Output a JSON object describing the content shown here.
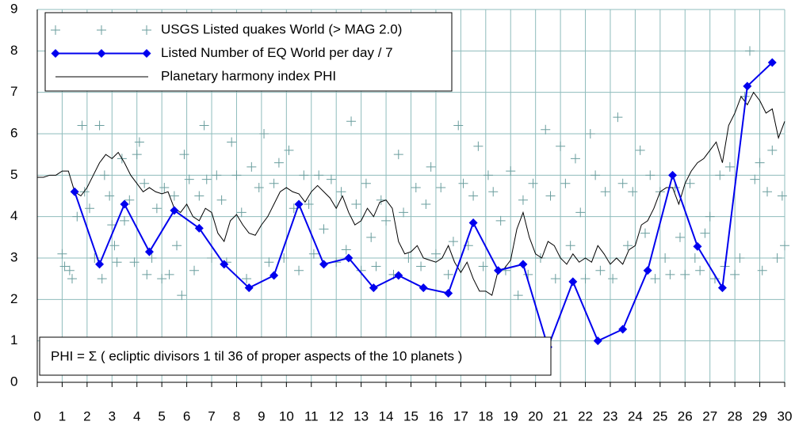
{
  "chart_data": {
    "type": "scatter-line",
    "annotation": "PHI = Σ ( ecliptic divisors 1 til 36 of proper aspects of the 10 planets )",
    "xlim": [
      0,
      30
    ],
    "ylim": [
      0,
      9
    ],
    "xticks": [
      0,
      1,
      2,
      3,
      4,
      5,
      6,
      7,
      8,
      9,
      10,
      11,
      12,
      13,
      14,
      15,
      16,
      17,
      18,
      19,
      20,
      21,
      22,
      23,
      24,
      25,
      26,
      27,
      28,
      29,
      30
    ],
    "yticks": [
      0,
      1,
      2,
      3,
      4,
      5,
      6,
      7,
      8,
      9
    ],
    "grid": true,
    "legend": "upper left",
    "series": [
      {
        "name": "USGS Listed quakes World (> MAG 2.0)",
        "kind": "scatter",
        "color": "#6a9e9e",
        "x": [
          1.0,
          1.1,
          1.3,
          1.4,
          1.6,
          1.8,
          1.9,
          2.1,
          2.3,
          2.5,
          2.6,
          2.7,
          2.9,
          3.0,
          3.1,
          3.2,
          3.4,
          3.5,
          3.7,
          3.9,
          4.0,
          4.1,
          4.3,
          4.4,
          4.6,
          4.8,
          5.0,
          5.1,
          5.3,
          5.5,
          5.6,
          5.8,
          5.9,
          6.1,
          6.3,
          6.5,
          6.7,
          6.8,
          7.0,
          7.2,
          7.4,
          7.6,
          7.8,
          8.0,
          8.2,
          8.4,
          8.6,
          8.9,
          9.1,
          9.3,
          9.5,
          9.7,
          9.9,
          10.1,
          10.3,
          10.5,
          10.7,
          10.9,
          11.1,
          11.3,
          11.5,
          11.8,
          12.0,
          12.2,
          12.4,
          12.6,
          12.8,
          13.0,
          13.2,
          13.4,
          13.6,
          13.8,
          14.0,
          14.3,
          14.5,
          14.7,
          14.9,
          15.2,
          15.4,
          15.6,
          15.8,
          16.0,
          16.2,
          16.5,
          16.7,
          16.9,
          17.1,
          17.3,
          17.5,
          17.7,
          17.9,
          18.1,
          18.3,
          18.6,
          18.8,
          19.0,
          19.3,
          19.5,
          19.7,
          19.9,
          20.2,
          20.4,
          20.6,
          20.8,
          21.0,
          21.2,
          21.4,
          21.6,
          21.8,
          22.0,
          22.2,
          22.4,
          22.6,
          22.8,
          23.1,
          23.3,
          23.5,
          23.7,
          23.9,
          24.2,
          24.4,
          24.6,
          24.8,
          25.0,
          25.2,
          25.4,
          25.6,
          25.8,
          26.0,
          26.2,
          26.4,
          26.6,
          26.8,
          27.0,
          27.2,
          27.4,
          27.6,
          27.8,
          28.0,
          28.2,
          28.4,
          28.6,
          28.8,
          29.0,
          29.1,
          29.3,
          29.5,
          29.7,
          29.9,
          30.0
        ],
        "values": [
          3.1,
          2.8,
          2.7,
          2.5,
          4.0,
          6.2,
          4.6,
          4.2,
          3.0,
          6.2,
          2.5,
          5.0,
          4.5,
          3.8,
          3.3,
          2.9,
          5.4,
          3.9,
          4.4,
          2.9,
          5.5,
          5.8,
          4.8,
          2.6,
          3.0,
          4.2,
          2.5,
          4.7,
          2.6,
          4.5,
          3.3,
          2.1,
          5.5,
          4.9,
          2.7,
          4.5,
          6.2,
          4.9,
          3.0,
          5.0,
          4.4,
          2.9,
          5.8,
          5.0,
          4.1,
          2.5,
          5.2,
          4.7,
          6.0,
          2.9,
          4.8,
          5.3,
          3.0,
          5.6,
          4.2,
          2.7,
          5.0,
          4.3,
          3.1,
          5.0,
          3.7,
          4.9,
          2.9,
          4.6,
          3.2,
          6.3,
          4.3,
          2.7,
          4.8,
          3.5,
          2.8,
          4.4,
          3.9,
          2.6,
          5.5,
          4.1,
          3.0,
          4.7,
          2.8,
          4.3,
          5.2,
          3.1,
          4.7,
          2.6,
          3.4,
          6.2,
          4.8,
          3.3,
          4.5,
          5.7,
          2.8,
          5.0,
          4.6,
          3.9,
          2.7,
          5.1,
          2.1,
          4.4,
          2.6,
          4.8,
          3.0,
          6.1,
          4.5,
          2.5,
          5.7,
          4.8,
          3.3,
          5.4,
          4.1,
          2.5,
          6.0,
          5.0,
          2.7,
          4.6,
          2.5,
          6.4,
          4.8,
          3.3,
          4.6,
          5.6,
          3.6,
          5.0,
          2.5,
          4.6,
          3.0,
          2.6,
          4.7,
          3.5,
          2.6,
          4.8,
          3.0,
          2.7,
          3.6,
          4.0,
          2.5,
          5.0,
          2.8,
          5.2,
          2.6,
          3.0,
          6.9,
          8.0,
          4.9,
          5.3,
          2.7,
          4.6,
          5.6,
          3.0,
          4.5,
          3.3
        ]
      },
      {
        "name": "Listed Number of EQ World per day / 7",
        "kind": "line-marker",
        "color": "#0000ee",
        "x": [
          1.5,
          2.5,
          3.5,
          4.5,
          5.5,
          6.5,
          7.5,
          8.5,
          9.5,
          10.5,
          11.5,
          12.5,
          13.5,
          14.5,
          15.5,
          16.5,
          17.5,
          18.5,
          19.5,
          20.5,
          21.5,
          22.5,
          23.5,
          24.5,
          25.5,
          26.5,
          27.5,
          28.5,
          29.5
        ],
        "values": [
          4.6,
          2.85,
          4.3,
          3.15,
          4.15,
          3.72,
          2.85,
          2.28,
          2.58,
          4.3,
          2.85,
          3.0,
          2.28,
          2.58,
          2.28,
          2.15,
          3.85,
          2.7,
          2.85,
          0.85,
          2.43,
          1.0,
          1.28,
          2.7,
          5.0,
          3.28,
          2.28,
          7.15,
          7.72
        ]
      },
      {
        "name": "Planetary harmony index PHI",
        "kind": "line",
        "color": "#000000",
        "x": [
          0,
          0.25,
          0.5,
          0.75,
          1,
          1.25,
          1.5,
          1.75,
          2,
          2.25,
          2.5,
          2.75,
          3,
          3.25,
          3.5,
          3.75,
          4,
          4.25,
          4.5,
          4.75,
          5,
          5.25,
          5.5,
          5.75,
          6,
          6.25,
          6.5,
          6.75,
          7,
          7.25,
          7.5,
          7.75,
          8,
          8.25,
          8.5,
          8.75,
          9,
          9.25,
          9.5,
          9.75,
          10,
          10.25,
          10.5,
          10.75,
          11,
          11.25,
          11.5,
          11.75,
          12,
          12.25,
          12.5,
          12.75,
          13,
          13.25,
          13.5,
          13.75,
          14,
          14.25,
          14.5,
          14.75,
          15,
          15.25,
          15.5,
          15.75,
          16,
          16.25,
          16.5,
          16.75,
          17,
          17.25,
          17.5,
          17.75,
          18,
          18.25,
          18.5,
          18.75,
          19,
          19.25,
          19.5,
          19.75,
          20,
          20.25,
          20.5,
          20.75,
          21,
          21.25,
          21.5,
          21.75,
          22,
          22.25,
          22.5,
          22.75,
          23,
          23.25,
          23.5,
          23.75,
          24,
          24.25,
          24.5,
          24.75,
          25,
          25.25,
          25.5,
          25.75,
          26,
          26.25,
          26.5,
          26.75,
          27,
          27.25,
          27.5,
          27.75,
          28,
          28.25,
          28.5,
          28.75,
          29,
          29.25,
          29.5,
          29.75,
          30
        ],
        "values": [
          4.95,
          4.95,
          5.0,
          5.0,
          5.1,
          5.1,
          4.6,
          4.5,
          4.7,
          5.0,
          5.3,
          5.5,
          5.4,
          5.55,
          5.3,
          5.0,
          4.8,
          4.6,
          4.7,
          4.6,
          4.55,
          4.6,
          4.2,
          4.1,
          4.3,
          4.0,
          3.9,
          4.2,
          4.1,
          3.6,
          3.4,
          3.9,
          4.05,
          3.8,
          3.6,
          3.55,
          3.8,
          4.0,
          4.3,
          4.6,
          4.7,
          4.6,
          4.55,
          4.35,
          4.6,
          4.75,
          4.6,
          4.45,
          4.2,
          4.5,
          4.1,
          3.8,
          3.9,
          4.2,
          4.0,
          4.35,
          4.4,
          4.2,
          3.4,
          3.1,
          3.15,
          3.3,
          3.0,
          2.95,
          2.9,
          3.0,
          3.3,
          2.9,
          2.65,
          2.9,
          2.5,
          2.2,
          2.2,
          2.1,
          2.7,
          2.75,
          2.95,
          3.7,
          4.1,
          3.5,
          3.1,
          3.0,
          3.4,
          3.3,
          3.0,
          2.85,
          3.1,
          2.9,
          3.0,
          2.9,
          3.3,
          3.1,
          2.85,
          3.0,
          2.85,
          3.2,
          3.3,
          3.8,
          3.9,
          4.2,
          4.6,
          4.7,
          4.7,
          4.3,
          4.8,
          5.1,
          5.3,
          5.4,
          5.6,
          5.8,
          5.3,
          6.2,
          6.5,
          6.9,
          6.7,
          7.0,
          6.8,
          6.5,
          6.6,
          5.9,
          6.3
        ]
      }
    ]
  }
}
